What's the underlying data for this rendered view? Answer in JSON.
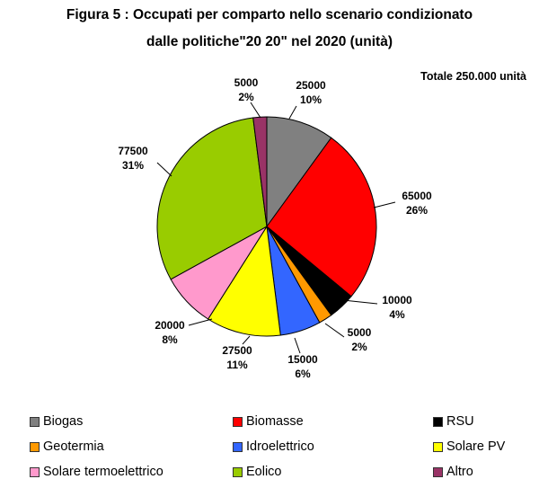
{
  "title_line1": "Figura 5 : Occupati per comparto nello scenario condizionato",
  "title_line2": "dalle politiche\"20 20\" nel 2020 (unità)",
  "total_label": "Totale 250.000 unità",
  "chart_data": {
    "type": "pie",
    "slices": [
      {
        "name": "Biogas",
        "value": 25000,
        "percent": "10%",
        "value_label": "25000",
        "color": "#808080"
      },
      {
        "name": "Biomasse",
        "value": 65000,
        "percent": "26%",
        "value_label": "65000",
        "color": "#ff0000"
      },
      {
        "name": "RSU",
        "value": 10000,
        "percent": "4%",
        "value_label": "10000",
        "color": "#000000"
      },
      {
        "name": "Geotermia",
        "value": 5000,
        "percent": "2%",
        "value_label": "5000",
        "color": "#ff9900"
      },
      {
        "name": "Idroelettrico",
        "value": 15000,
        "percent": "6%",
        "value_label": "15000",
        "color": "#3366ff"
      },
      {
        "name": "Solare PV",
        "value": 27500,
        "percent": "11%",
        "value_label": "27500",
        "color": "#ffff00"
      },
      {
        "name": "Solare termoelettrico",
        "value": 20000,
        "percent": "8%",
        "value_label": "20000",
        "color": "#ff99cc"
      },
      {
        "name": "Eolico",
        "value": 77500,
        "percent": "31%",
        "value_label": "77500",
        "color": "#99cc00"
      },
      {
        "name": "Altro",
        "value": 5000,
        "percent": "2%",
        "value_label": "5000",
        "color": "#993366"
      }
    ],
    "legend_position": "bottom"
  }
}
